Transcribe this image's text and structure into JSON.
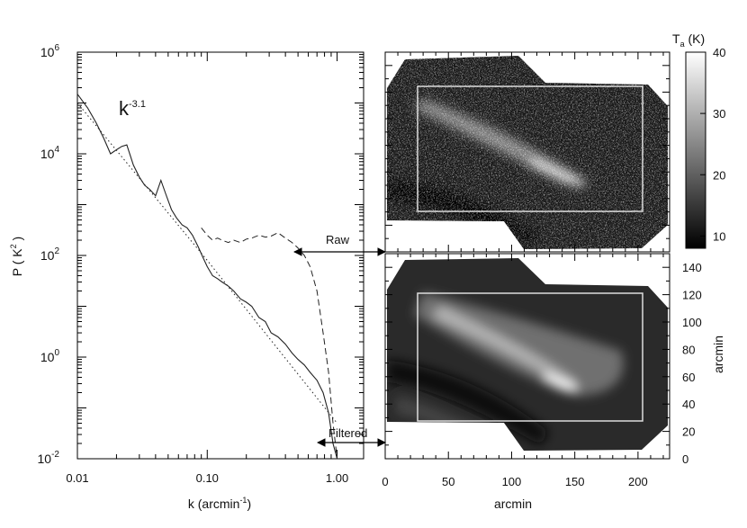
{
  "chart_data": [
    {
      "type": "line",
      "xscale": "log",
      "yscale": "log",
      "xlim": [
        0.01,
        1.6
      ],
      "ylim": [
        0.01,
        1000000
      ],
      "xlabel_main": "k (arcmin",
      "xlabel_sup": "-1",
      "xlabel_end": ")",
      "ylabel_main": "P ( K",
      "ylabel_sup": "2",
      "ylabel_end": " )",
      "xticks": [
        {
          "value": 0.01,
          "label": "0.01"
        },
        {
          "value": 0.1,
          "label": "0.10"
        },
        {
          "value": 1.0,
          "label": "1.00"
        }
      ],
      "yticks": [
        {
          "value": 0.01,
          "base": "10",
          "exp": "-2"
        },
        {
          "value": 1,
          "base": "10",
          "exp": "0"
        },
        {
          "value": 100,
          "base": "10",
          "exp": "2"
        },
        {
          "value": 10000,
          "base": "10",
          "exp": "4"
        },
        {
          "value": 1000000,
          "base": "10",
          "exp": "6"
        }
      ],
      "annotation_base": "k",
      "annotation_exp": "-3.1",
      "series": [
        {
          "style": "solid",
          "x": [
            0.01,
            0.012,
            0.014,
            0.016,
            0.018,
            0.02,
            0.022,
            0.024,
            0.027,
            0.03,
            0.033,
            0.036,
            0.04,
            0.044,
            0.048,
            0.053,
            0.058,
            0.064,
            0.07,
            0.077,
            0.085,
            0.093,
            0.1,
            0.11,
            0.12,
            0.13,
            0.145,
            0.16,
            0.18,
            0.2,
            0.22,
            0.25,
            0.28,
            0.31,
            0.35,
            0.4,
            0.45,
            0.5,
            0.56,
            0.62,
            0.7,
            0.78,
            0.86,
            0.93,
            1.0
          ],
          "y": [
            150000,
            80000,
            40000,
            20000,
            10000,
            12000,
            14000,
            15000,
            6000,
            3500,
            2400,
            2000,
            1500,
            3000,
            1600,
            800,
            550,
            400,
            350,
            250,
            150,
            90,
            60,
            40,
            35,
            30,
            25,
            20,
            14,
            12,
            10,
            6,
            5,
            3,
            2.5,
            1.8,
            1.2,
            0.9,
            0.7,
            0.5,
            0.35,
            0.2,
            0.08,
            0.02,
            0.01
          ]
        },
        {
          "style": "dashed",
          "x": [
            0.09,
            0.1,
            0.11,
            0.12,
            0.13,
            0.145,
            0.16,
            0.18,
            0.2,
            0.22,
            0.25,
            0.28,
            0.31,
            0.35,
            0.4,
            0.45,
            0.5,
            0.56,
            0.62,
            0.7,
            0.78,
            0.86,
            0.93,
            1.0
          ],
          "y": [
            350,
            250,
            200,
            220,
            200,
            180,
            200,
            180,
            210,
            220,
            250,
            230,
            240,
            280,
            220,
            180,
            140,
            100,
            60,
            20,
            3,
            0.5,
            0.05,
            0.01
          ]
        },
        {
          "style": "dotted",
          "x": [
            0.01,
            0.1,
            1.0
          ],
          "y": [
            100000,
            80,
            0.05
          ]
        }
      ]
    },
    {
      "type": "heatmap",
      "panel": "raw",
      "colorbar": {
        "label_main": "T",
        "label_sub": "a",
        "label_end": " (K)",
        "ticks": [
          "10",
          "20",
          "30",
          "40"
        ],
        "range": [
          8,
          40
        ]
      }
    },
    {
      "type": "heatmap",
      "panel": "filtered",
      "xlabel": "arcmin",
      "ylabel": "arcmin",
      "xticks": [
        "0",
        "50",
        "100",
        "150",
        "200"
      ],
      "yticks": [
        "0",
        "20",
        "40",
        "60",
        "80",
        "100",
        "120",
        "140"
      ],
      "xlim": [
        0,
        225
      ],
      "ylim": [
        0,
        150
      ]
    }
  ],
  "arrows": {
    "raw": "Raw",
    "filtered": "Filtered"
  }
}
